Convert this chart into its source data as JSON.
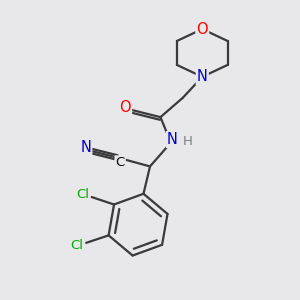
{
  "bg_color": "#e8e8eb",
  "bond_color": "#3a3a3a",
  "bond_width": 1.6,
  "atom_colors": {
    "O": "#ff0000",
    "N": "#0000cc",
    "C": "#000000",
    "Cl": "#00aa00",
    "H": "#808080"
  },
  "font_size": 9.5,
  "fig_size": [
    3.0,
    3.0
  ],
  "dpi": 100
}
